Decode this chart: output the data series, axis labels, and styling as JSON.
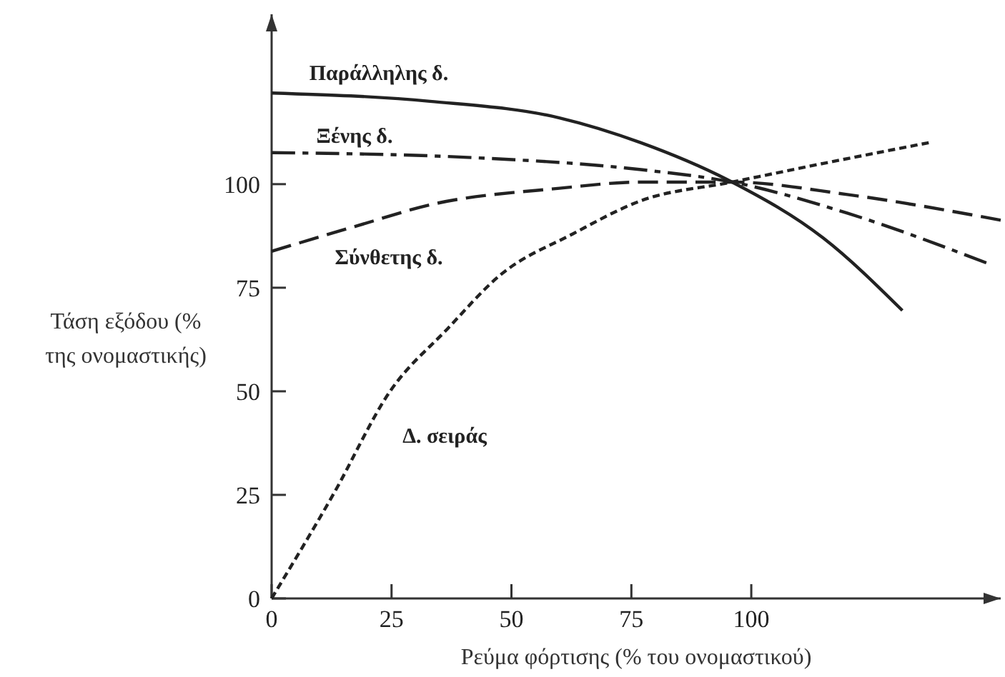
{
  "chart_data": {
    "type": "line",
    "xlabel": "Ρεύμα φόρτισης (% του ονομαστικού)",
    "ylabel": "Τάση εξόδου (% της ονομαστικής)",
    "xlim": [
      0,
      152
    ],
    "ylim": [
      0,
      141
    ],
    "xticks": [
      0,
      25,
      50,
      75,
      100
    ],
    "yticks": [
      0,
      25,
      50,
      75,
      100
    ],
    "grid": false,
    "marker": "none",
    "series": [
      {
        "name": "Παράλληλης δ.",
        "color": "#222222",
        "line_style": "solid",
        "x": [
          0,
          33,
          60,
          77,
          96,
          115,
          131.5
        ],
        "values": [
          122,
          120,
          116,
          110,
          100.5,
          87,
          69.5
        ]
      },
      {
        "name": "Ξένης δ.",
        "color": "#222222",
        "line_style": "dashdot",
        "x": [
          0,
          40,
          77,
          96,
          120,
          149
        ],
        "values": [
          107.6,
          106.5,
          103.5,
          100.5,
          93,
          81
        ]
      },
      {
        "name": "Σύνθετης δ.",
        "color": "#222222",
        "line_style": "dashed",
        "x": [
          0,
          18,
          33,
          60,
          77,
          96,
          120,
          152
        ],
        "values": [
          83.8,
          90,
          95,
          99,
          100.5,
          100.5,
          97.5,
          91.3
        ]
      },
      {
        "name": "Δ. σειράς",
        "color": "#222222",
        "line_style": "dotted",
        "x": [
          0,
          12.8,
          24.7,
          36.6,
          47.6,
          62.8,
          77,
          96,
          115,
          137
        ],
        "values": [
          0,
          25,
          50,
          65,
          78,
          88,
          96,
          100.5,
          105,
          110
        ]
      }
    ]
  }
}
